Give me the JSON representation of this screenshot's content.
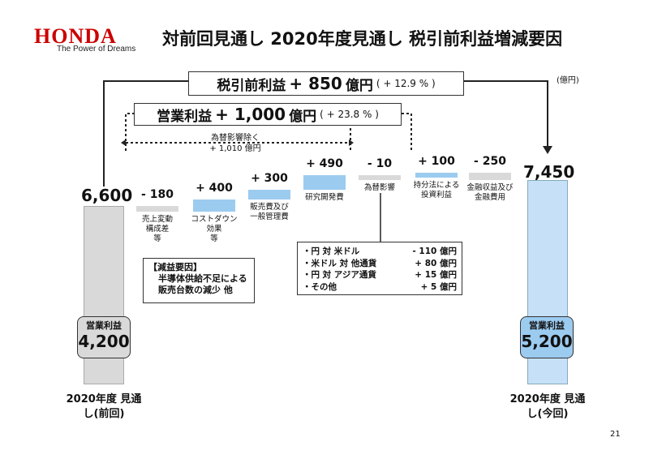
{
  "header": {
    "brand": "HONDA",
    "tagline": "The Power of Dreams",
    "title": "対前回見通し 2020年度見通し 税引前利益増減要因",
    "unit": "(億円)",
    "page_number": "21"
  },
  "summary": {
    "pretax_label": "税引前利益",
    "pretax_value": "+ 850",
    "pretax_unit": "億円",
    "pretax_pct": "( + 12.9 % )",
    "op_label": "営業利益",
    "op_value": "+ 1,000",
    "op_unit": "億円",
    "op_pct": "( + 23.8 % )",
    "fx_excluded_line1": "為替影響除く",
    "fx_excluded_line2": "+ 1,010 億円"
  },
  "colors": {
    "brand": "#cc0000",
    "gray_bar": "#d9d9d9",
    "blue_bar": "#9ccbf0",
    "blue_light": "#c5e0f7"
  },
  "chart_data": {
    "type": "bar",
    "subtype": "waterfall",
    "ylabel": "(億円)",
    "start": {
      "value": 6600,
      "value_label": "6,600",
      "label": "2020年度 見通し(前回)",
      "op_label": "営業利益",
      "op_value": "4,200"
    },
    "end": {
      "value": 7450,
      "value_label": "7,450",
      "label": "2020年度 見通し(今回)",
      "op_label": "営業利益",
      "op_value": "5,200"
    },
    "steps": [
      {
        "value": -180,
        "value_label": "- 180",
        "label": "売上変動 構成差 等"
      },
      {
        "value": 400,
        "value_label": "+ 400",
        "label": "コストダウン 効果 等"
      },
      {
        "value": 300,
        "value_label": "+ 300",
        "label": "販売費及び 一般管理費"
      },
      {
        "value": 490,
        "value_label": "+ 490",
        "label": "研究開発費"
      },
      {
        "value": -10,
        "value_label": "- 10",
        "label": "為替影響"
      },
      {
        "value": 100,
        "value_label": "+ 100",
        "label": "持分法による 投資利益"
      },
      {
        "value": -250,
        "value_label": "- 250",
        "label": "金融収益及び 金融費用"
      }
    ]
  },
  "reason_box": {
    "title": "【減益要因】",
    "line1": "半導体供給不足による",
    "line2": "販売台数の減少 他"
  },
  "fx_breakdown": [
    {
      "label": "・円 対 米ドル",
      "value": "- 110 億円"
    },
    {
      "label": "・米ドル 対 他通貨",
      "value": "+ 80 億円"
    },
    {
      "label": "・円 対 アジア通貨",
      "value": "+ 15 億円"
    },
    {
      "label": "・その他",
      "value": "+ 5 億円"
    }
  ]
}
